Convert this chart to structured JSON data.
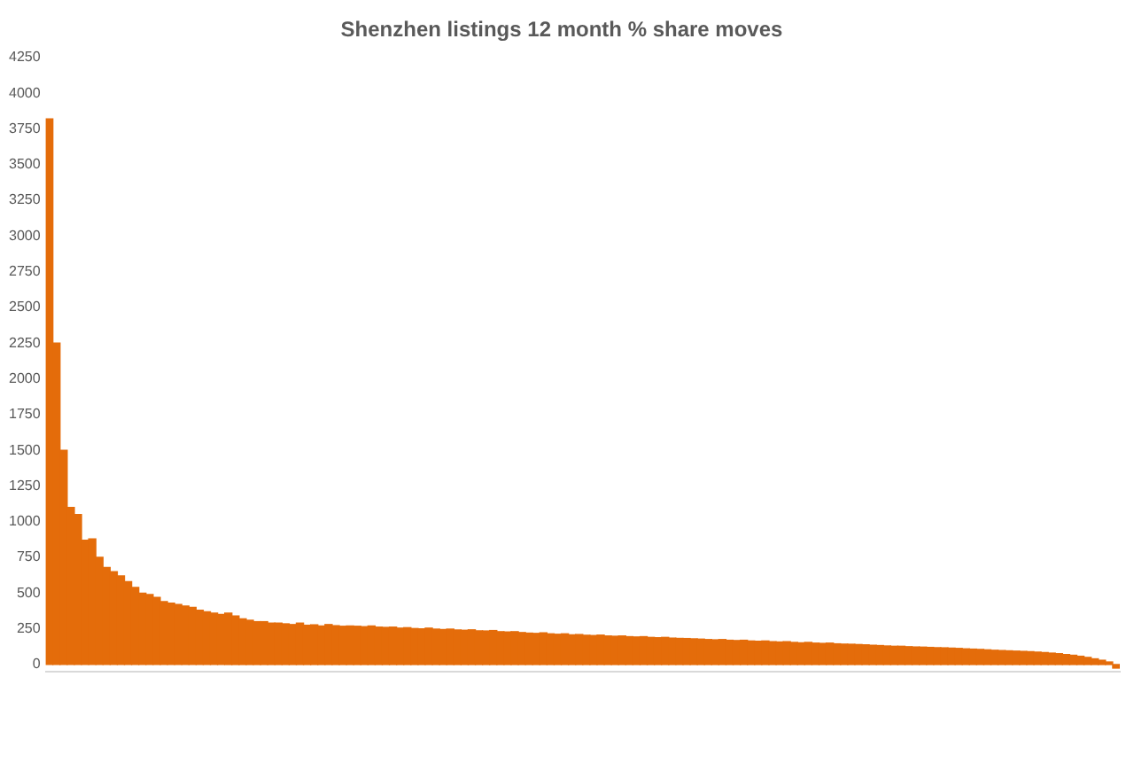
{
  "chart_data": {
    "type": "bar",
    "title": "Shenzhen listings 12 month % share moves",
    "categories": [
      null,
      null,
      null,
      null,
      null,
      null,
      null,
      null,
      null,
      null,
      null,
      null,
      null,
      null,
      null,
      null,
      null,
      null,
      null,
      null,
      null,
      null,
      null,
      null,
      null,
      null,
      null,
      null,
      null,
      null,
      null,
      null,
      null,
      null,
      null,
      null,
      null,
      null,
      null,
      null,
      null,
      null,
      null,
      null,
      null,
      null,
      null,
      null,
      null,
      null,
      null,
      null,
      null,
      null,
      null,
      null,
      null,
      null,
      null,
      null,
      null,
      null,
      null,
      null,
      null,
      null,
      null,
      null,
      null,
      null,
      null,
      null,
      null,
      null,
      null,
      null,
      null,
      null,
      null,
      null,
      null,
      null,
      null,
      null,
      null,
      null,
      null,
      null,
      null,
      null,
      null,
      null,
      null,
      null,
      null,
      null,
      null,
      null,
      null,
      null,
      null,
      null,
      null,
      null,
      null,
      null,
      null,
      null,
      null,
      null,
      null,
      null,
      null,
      null,
      null,
      null,
      null,
      null,
      null,
      null,
      null,
      null,
      null,
      null,
      null,
      null,
      null,
      null,
      null,
      null,
      null,
      null,
      null,
      null,
      null,
      null,
      null,
      null,
      null,
      null,
      null,
      null,
      null,
      null,
      null,
      null,
      null,
      null,
      null,
      null
    ],
    "values": [
      3820,
      2250,
      1500,
      1100,
      1050,
      870,
      880,
      750,
      680,
      650,
      620,
      580,
      540,
      500,
      490,
      470,
      440,
      430,
      420,
      410,
      400,
      380,
      370,
      360,
      350,
      360,
      340,
      320,
      310,
      300,
      300,
      290,
      290,
      285,
      280,
      290,
      275,
      278,
      270,
      280,
      272,
      268,
      270,
      268,
      265,
      270,
      262,
      260,
      262,
      255,
      258,
      252,
      250,
      255,
      248,
      245,
      248,
      242,
      240,
      243,
      236,
      235,
      238,
      230,
      228,
      230,
      224,
      220,
      218,
      222,
      215,
      212,
      215,
      208,
      210,
      205,
      203,
      206,
      200,
      198,
      200,
      195,
      193,
      195,
      190,
      188,
      190,
      185,
      183,
      182,
      180,
      178,
      175,
      173,
      175,
      170,
      168,
      170,
      165,
      163,
      165,
      160,
      158,
      160,
      155,
      152,
      155,
      150,
      148,
      150,
      145,
      143,
      142,
      140,
      138,
      135,
      133,
      130,
      128,
      128,
      125,
      123,
      122,
      120,
      118,
      117,
      115,
      113,
      110,
      108,
      106,
      103,
      100,
      98,
      96,
      94,
      92,
      90,
      87,
      84,
      80,
      76,
      70,
      65,
      58,
      50,
      40,
      30,
      18,
      -25
    ],
    "color": "#e46c0a",
    "ylim": [
      -50,
      4250
    ],
    "yticks": [
      0,
      250,
      500,
      750,
      1000,
      1250,
      1500,
      1750,
      2000,
      2250,
      2500,
      2750,
      3000,
      3250,
      3500,
      3750,
      4000,
      4250
    ],
    "grid": false,
    "legend": false,
    "tick_labels": "y"
  }
}
